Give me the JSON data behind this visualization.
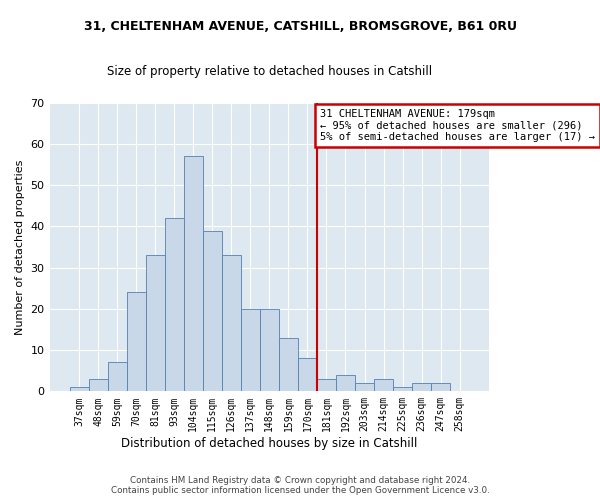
{
  "title": "31, CHELTENHAM AVENUE, CATSHILL, BROMSGROVE, B61 0RU",
  "subtitle": "Size of property relative to detached houses in Catshill",
  "xlabel": "Distribution of detached houses by size in Catshill",
  "ylabel": "Number of detached properties",
  "bar_labels": [
    "37sqm",
    "48sqm",
    "59sqm",
    "70sqm",
    "81sqm",
    "93sqm",
    "104sqm",
    "115sqm",
    "126sqm",
    "137sqm",
    "148sqm",
    "159sqm",
    "170sqm",
    "181sqm",
    "192sqm",
    "203sqm",
    "214sqm",
    "225sqm",
    "236sqm",
    "247sqm",
    "258sqm"
  ],
  "bar_heights": [
    1,
    3,
    7,
    24,
    33,
    42,
    57,
    39,
    33,
    20,
    20,
    13,
    8,
    3,
    4,
    2,
    3,
    1,
    2,
    2,
    0
  ],
  "bar_color": "#c8d8e8",
  "bar_edge_color": "#5580b0",
  "vline_color": "#cc0000",
  "annotation_title": "31 CHELTENHAM AVENUE: 179sqm",
  "annotation_line1": "← 95% of detached houses are smaller (296)",
  "annotation_line2": "5% of semi-detached houses are larger (17) →",
  "annotation_box_edge_color": "#cc0000",
  "ylim": [
    0,
    70
  ],
  "yticks": [
    0,
    10,
    20,
    30,
    40,
    50,
    60,
    70
  ],
  "background_color": "#dde8f0",
  "grid_color": "#ffffff",
  "footnote1": "Contains HM Land Registry data © Crown copyright and database right 2024.",
  "footnote2": "Contains public sector information licensed under the Open Government Licence v3.0."
}
